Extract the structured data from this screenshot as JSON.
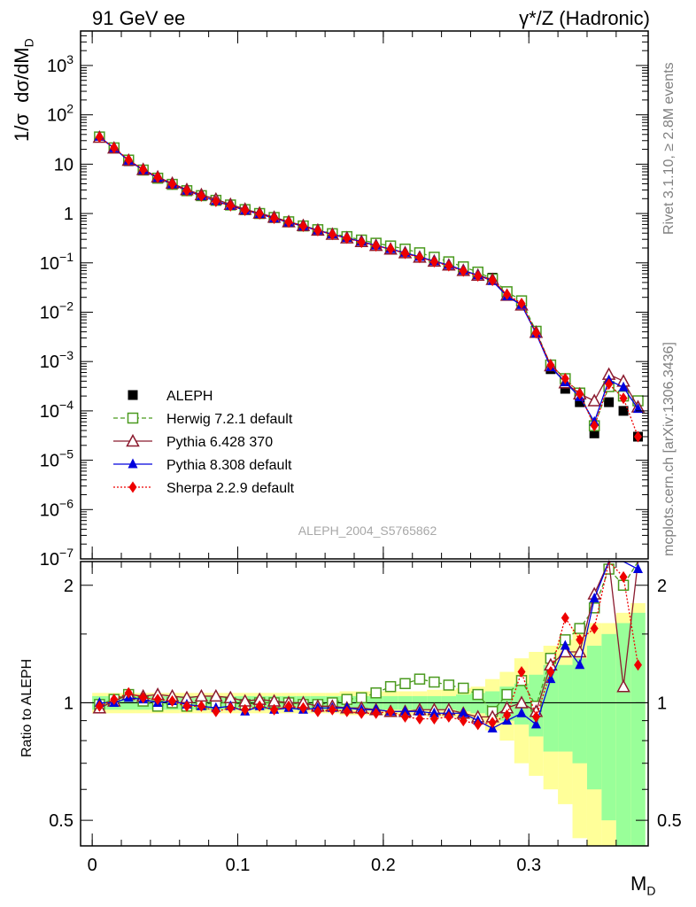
{
  "header": {
    "left": "91 GeV ee",
    "right": "γ*/Z (Hadronic)"
  },
  "ylabel_main": "1/σ dσ/dM_D",
  "ylabel_ratio": "Ratio to ALEPH",
  "xlabel": "M_D",
  "watermark": "ALEPH_2004_S5765862",
  "side_rivet": "Rivet 3.1.10, ≥ 2.8M events",
  "side_mcplots": "mcplots.cern.ch [arXiv:1306.3436]",
  "chart_data": [
    {
      "type": "line",
      "yscale": "log",
      "xlim": [
        -0.008,
        0.382
      ],
      "ylim": [
        1e-07,
        5000
      ],
      "y_ticks": [
        "10^-7",
        "10^-6",
        "10^-5",
        "10^-4",
        "10^-3",
        "10^-2",
        "10^-1",
        "1",
        "10",
        "10^2",
        "10^3"
      ],
      "x": [
        0.005,
        0.015,
        0.025,
        0.035,
        0.045,
        0.055,
        0.065,
        0.075,
        0.085,
        0.095,
        0.105,
        0.115,
        0.125,
        0.135,
        0.145,
        0.155,
        0.165,
        0.175,
        0.185,
        0.195,
        0.205,
        0.215,
        0.225,
        0.235,
        0.245,
        0.255,
        0.265,
        0.275,
        0.285,
        0.295,
        0.305,
        0.315,
        0.325,
        0.335,
        0.345,
        0.355,
        0.365,
        0.375
      ],
      "legend": [
        "ALEPH",
        "Herwig 7.2.1 default",
        "Pythia 6.428 370",
        "Pythia 8.308 default",
        "Sherpa 2.2.9 default"
      ],
      "series": [
        {
          "name": "ALEPH",
          "color": "#000000",
          "marker": "square",
          "values": [
            36,
            21,
            11.5,
            7.5,
            5.3,
            3.9,
            2.95,
            2.3,
            1.85,
            1.48,
            1.21,
            1.0,
            0.83,
            0.68,
            0.57,
            0.47,
            0.39,
            0.33,
            0.28,
            0.235,
            0.2,
            0.17,
            0.14,
            0.115,
            0.095,
            0.075,
            0.062,
            0.05,
            0.025,
            0.015,
            0.0042,
            0.0007,
            0.00028,
            0.00015,
            3.5e-05,
            0.00015,
            0.0001,
            3e-05
          ]
        },
        {
          "name": "Herwig 7.2.1 default",
          "color": "#4a9a1f",
          "marker": "open-square",
          "dash": "5,3",
          "values": [
            35.6,
            21.4,
            12.1,
            7.6,
            5.2,
            3.9,
            2.9,
            2.3,
            1.85,
            1.49,
            1.2,
            1.0,
            0.83,
            0.68,
            0.56,
            0.47,
            0.39,
            0.34,
            0.29,
            0.25,
            0.22,
            0.19,
            0.16,
            0.13,
            0.105,
            0.083,
            0.065,
            0.047,
            0.026,
            0.017,
            0.0041,
            0.00085,
            0.00045,
            0.00023,
            5e-05,
            0.00031,
            0.0002,
            0.00016
          ]
        },
        {
          "name": "Pythia 6.428 370",
          "color": "#8b1a2e",
          "marker": "open-triangle",
          "values": [
            35,
            21.2,
            12.0,
            7.8,
            5.5,
            4.1,
            3.05,
            2.4,
            1.95,
            1.53,
            1.22,
            1.02,
            0.84,
            0.68,
            0.57,
            0.46,
            0.38,
            0.32,
            0.27,
            0.225,
            0.19,
            0.16,
            0.13,
            0.108,
            0.09,
            0.07,
            0.056,
            0.046,
            0.022,
            0.014,
            0.0039,
            0.00082,
            0.00037,
            0.00022,
            0.00016,
            0.00055,
            0.0004,
            0.00012
          ]
        },
        {
          "name": "Pythia 8.308 default",
          "color": "#0000dd",
          "marker": "triangle",
          "values": [
            36,
            21,
            11.8,
            7.6,
            5.3,
            3.95,
            2.92,
            2.25,
            1.8,
            1.45,
            1.15,
            0.98,
            0.8,
            0.66,
            0.55,
            0.455,
            0.38,
            0.32,
            0.27,
            0.225,
            0.19,
            0.16,
            0.132,
            0.108,
            0.09,
            0.07,
            0.056,
            0.043,
            0.021,
            0.014,
            0.0037,
            0.00077,
            0.00038,
            0.00019,
            6e-05,
            0.00042,
            0.0003,
            0.00011
          ]
        },
        {
          "name": "Sherpa 2.2.9 default",
          "color": "#ee0000",
          "marker": "diamond",
          "dash": "2,2",
          "values": [
            35.4,
            21.4,
            12.2,
            7.7,
            5.4,
            3.95,
            2.9,
            2.26,
            1.76,
            1.43,
            1.16,
            0.98,
            0.8,
            0.67,
            0.55,
            0.45,
            0.375,
            0.315,
            0.26,
            0.22,
            0.19,
            0.155,
            0.128,
            0.105,
            0.087,
            0.068,
            0.054,
            0.044,
            0.023,
            0.015,
            0.0038,
            0.00085,
            0.00045,
            0.00022,
            5e-05,
            0.00035,
            0.00018,
            3e-05
          ]
        }
      ]
    },
    {
      "type": "line",
      "yscale": "log",
      "ylim": [
        0.43,
        2.3
      ],
      "y_ticks": [
        "0.5",
        "1",
        "2"
      ],
      "x_ticks": [
        "0",
        "0.1",
        "0.2",
        "0.3"
      ],
      "x": [
        0.005,
        0.015,
        0.025,
        0.035,
        0.045,
        0.055,
        0.065,
        0.075,
        0.085,
        0.095,
        0.105,
        0.115,
        0.125,
        0.135,
        0.145,
        0.155,
        0.165,
        0.175,
        0.185,
        0.195,
        0.205,
        0.215,
        0.225,
        0.235,
        0.245,
        0.255,
        0.265,
        0.275,
        0.285,
        0.295,
        0.305,
        0.315,
        0.325,
        0.335,
        0.345,
        0.355,
        0.365,
        0.375
      ],
      "band_1sigma": [
        0.04,
        0.04,
        0.04,
        0.04,
        0.04,
        0.04,
        0.04,
        0.04,
        0.04,
        0.04,
        0.04,
        0.04,
        0.04,
        0.04,
        0.04,
        0.04,
        0.04,
        0.04,
        0.04,
        0.04,
        0.04,
        0.04,
        0.04,
        0.04,
        0.04,
        0.05,
        0.06,
        0.07,
        0.1,
        0.12,
        0.18,
        0.25,
        0.25,
        0.3,
        0.4,
        0.5,
        0.6,
        0.7
      ],
      "band_2sigma": [
        0.06,
        0.06,
        0.06,
        0.06,
        0.06,
        0.06,
        0.06,
        0.06,
        0.06,
        0.06,
        0.06,
        0.06,
        0.06,
        0.06,
        0.06,
        0.06,
        0.06,
        0.07,
        0.07,
        0.07,
        0.07,
        0.07,
        0.07,
        0.08,
        0.08,
        0.09,
        0.1,
        0.15,
        0.2,
        0.3,
        0.35,
        0.4,
        0.45,
        0.55,
        0.6,
        0.6,
        0.7,
        0.8
      ],
      "series": [
        {
          "name": "Herwig 7.2.1 default",
          "color": "#4a9a1f",
          "marker": "open-square",
          "dash": "5,3",
          "values": [
            0.99,
            1.02,
            1.05,
            1.01,
            0.98,
            1.0,
            0.98,
            0.99,
            1.0,
            1.0,
            0.99,
            1.0,
            1.0,
            1.0,
            0.99,
            0.99,
            1.0,
            1.02,
            1.03,
            1.06,
            1.1,
            1.12,
            1.15,
            1.13,
            1.11,
            1.09,
            1.05,
            0.95,
            1.05,
            1.14,
            0.98,
            1.3,
            1.45,
            1.55,
            1.75,
            2.2,
            2.0,
            2.5
          ]
        },
        {
          "name": "Pythia 6.428 370",
          "color": "#8b1a2e",
          "marker": "open-triangle",
          "values": [
            0.97,
            1.01,
            1.05,
            1.04,
            1.05,
            1.04,
            1.03,
            1.04,
            1.04,
            1.03,
            1.01,
            1.02,
            1.01,
            1.0,
            1.0,
            0.98,
            0.98,
            0.97,
            0.97,
            0.96,
            0.95,
            0.95,
            0.96,
            0.96,
            0.96,
            0.94,
            0.92,
            0.92,
            0.97,
            1.0,
            0.95,
            1.25,
            1.35,
            1.35,
            1.9,
            2.6,
            1.1,
            2.6
          ]
        },
        {
          "name": "Pythia 8.308 default",
          "color": "#0000dd",
          "marker": "triangle",
          "values": [
            1.0,
            1.0,
            1.03,
            1.02,
            1.0,
            1.01,
            0.99,
            0.98,
            0.97,
            0.98,
            0.95,
            0.98,
            0.96,
            0.97,
            0.96,
            0.97,
            0.97,
            0.97,
            0.96,
            0.96,
            0.95,
            0.95,
            0.95,
            0.94,
            0.94,
            0.94,
            0.9,
            0.86,
            0.9,
            0.94,
            0.88,
            1.15,
            1.4,
            1.25,
            1.85,
            2.5,
            2.6,
            2.2
          ]
        },
        {
          "name": "Sherpa 2.2.9 default",
          "color": "#ee0000",
          "marker": "diamond",
          "dash": "2,2",
          "values": [
            0.98,
            1.02,
            1.06,
            1.03,
            1.02,
            1.01,
            0.98,
            0.98,
            0.95,
            0.97,
            0.96,
            0.98,
            0.96,
            0.98,
            0.97,
            0.95,
            0.96,
            0.95,
            0.94,
            0.94,
            0.95,
            0.92,
            0.91,
            0.91,
            0.92,
            0.9,
            0.88,
            0.89,
            0.93,
            1.2,
            0.92,
            1.2,
            1.65,
            1.45,
            1.55,
            2.5,
            2.1,
            1.25
          ]
        }
      ]
    }
  ]
}
